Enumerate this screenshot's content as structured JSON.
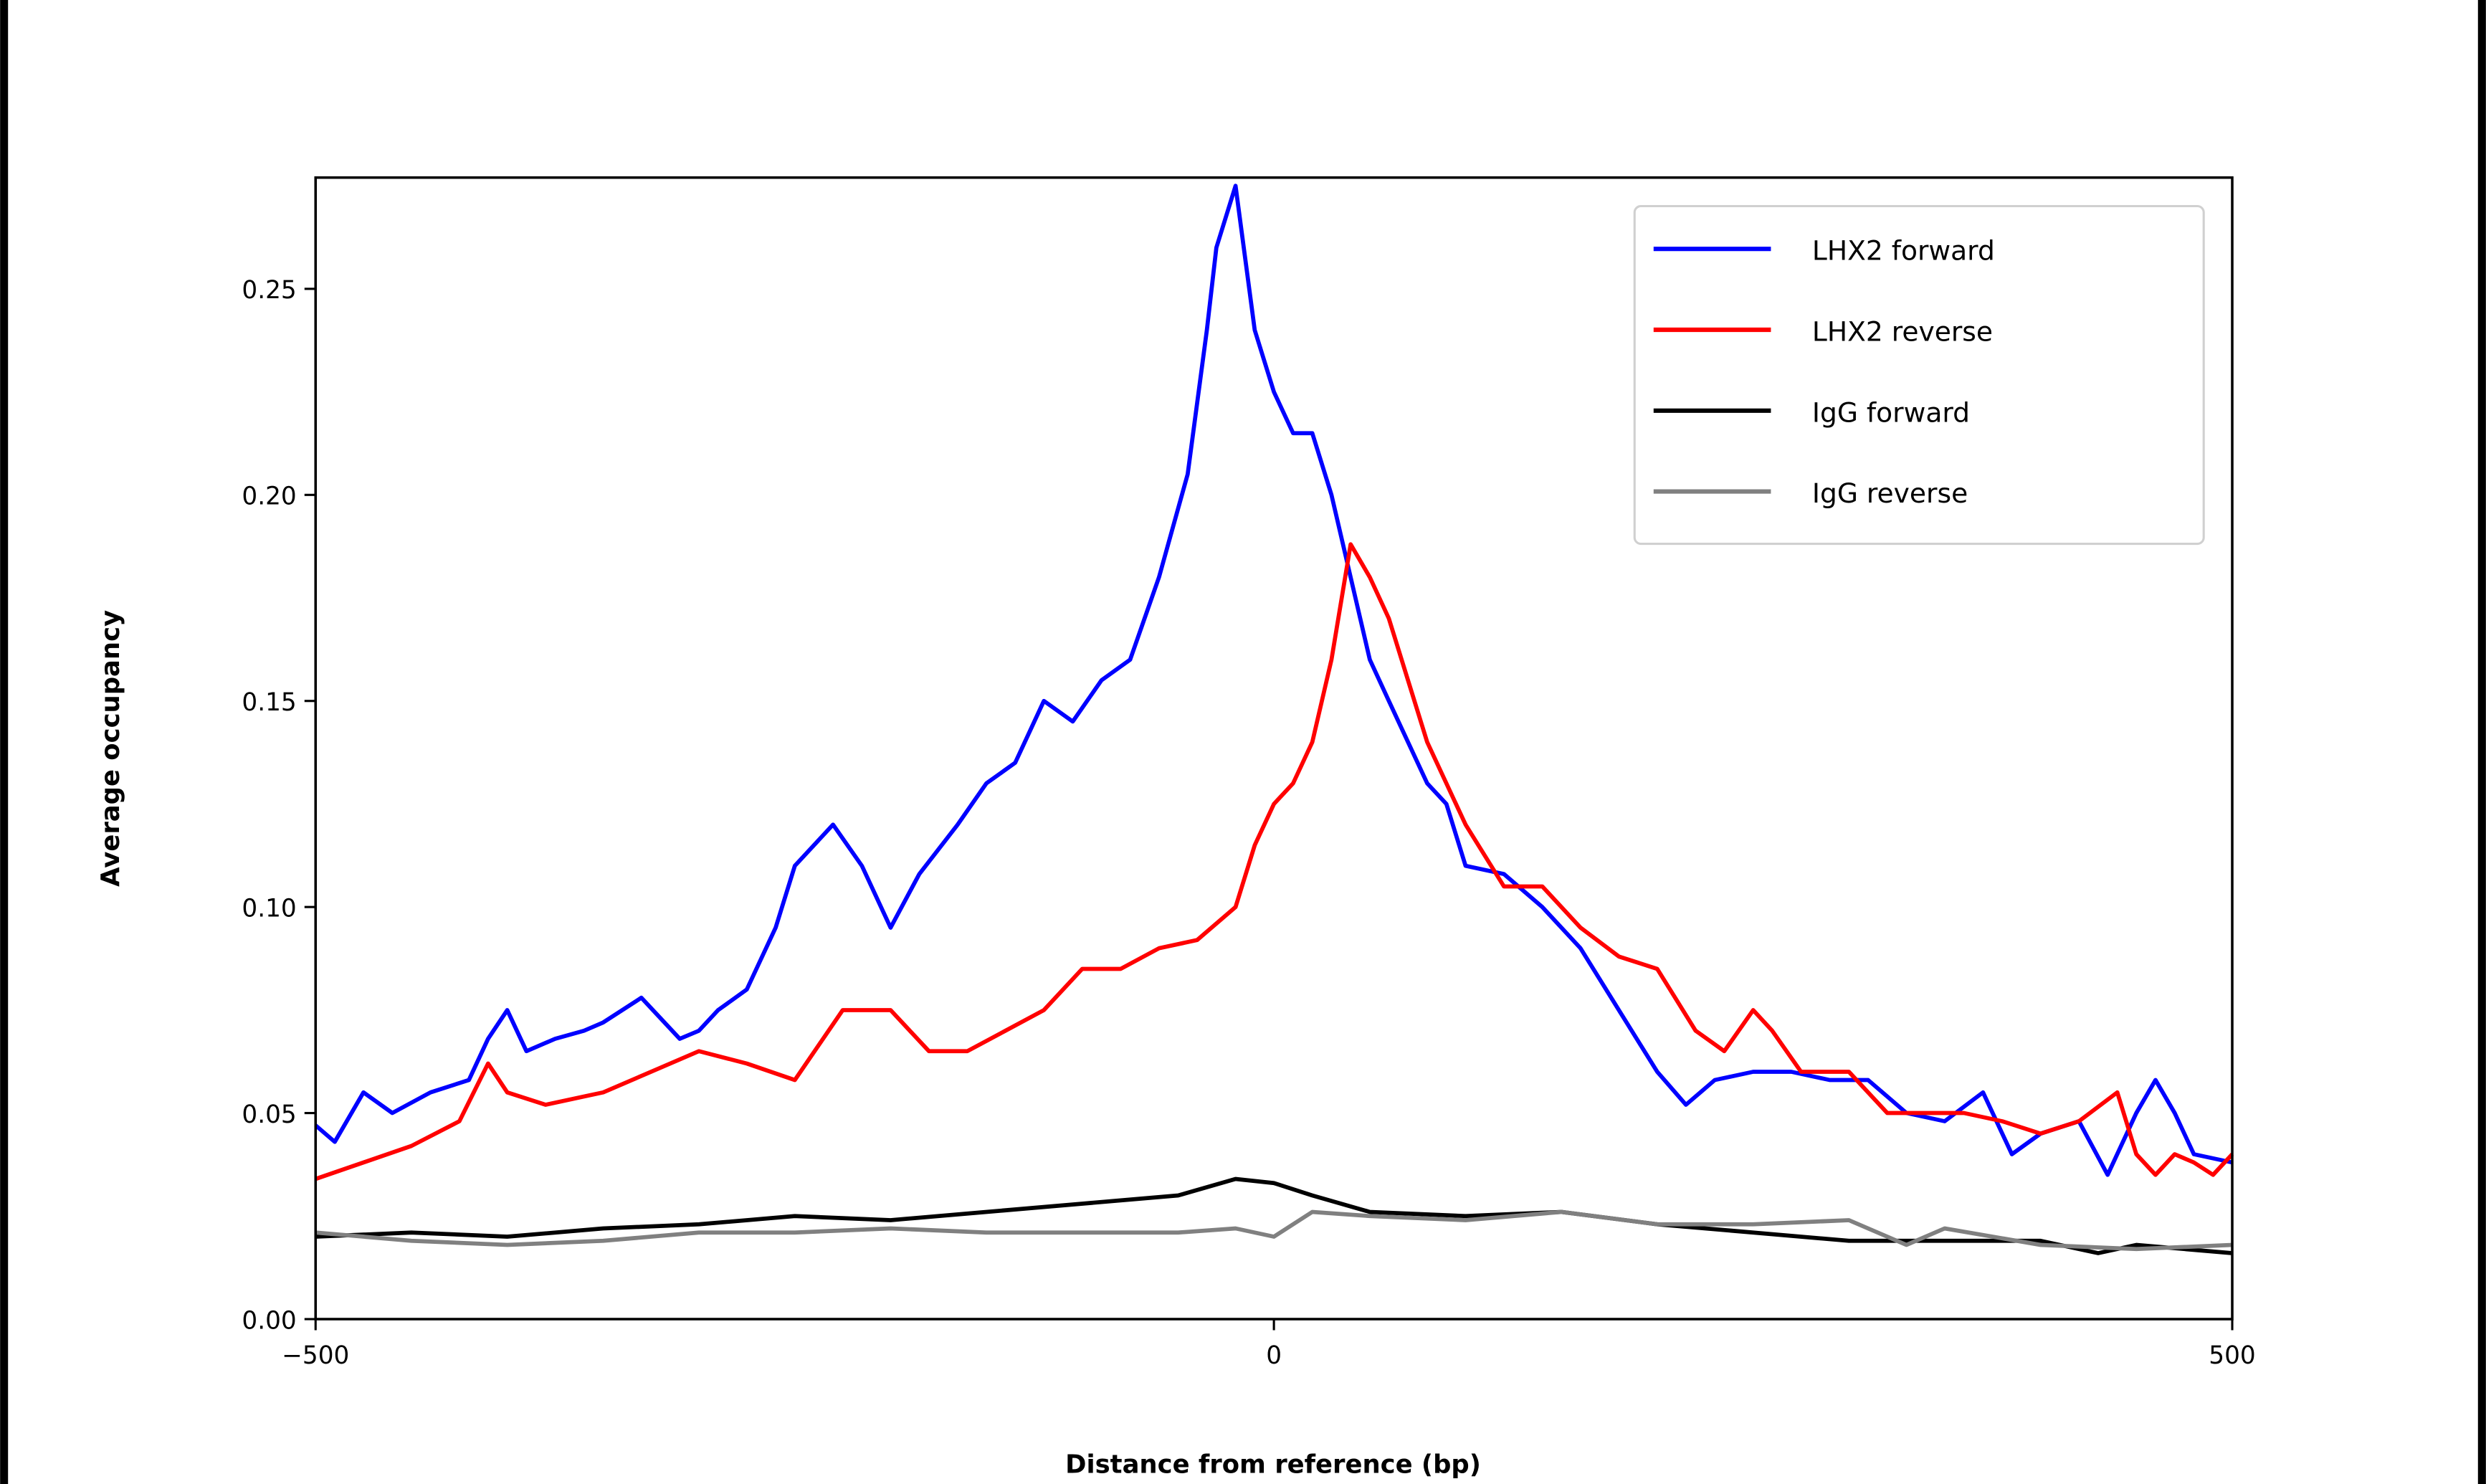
{
  "chart_data": {
    "type": "line",
    "title": "",
    "xlabel": "Distance from reference (bp)",
    "ylabel": "Average occupancy",
    "xlim": [
      -500,
      500
    ],
    "ylim": [
      0,
      0.277
    ],
    "xticks": [
      -500,
      0,
      500
    ],
    "xtick_labels": [
      "−500",
      "0",
      "500"
    ],
    "yticks": [
      0,
      0.05,
      0.1,
      0.15,
      0.2,
      0.25
    ],
    "ytick_labels": [
      "0.00",
      "0.05",
      "0.10",
      "0.15",
      "0.20",
      "0.25"
    ],
    "grid": false,
    "legend_position": "top-right",
    "series": [
      {
        "name": "LHX2 forward",
        "color": "#0000ff",
        "x": [
          -500,
          -490,
          -475,
          -460,
          -440,
          -420,
          -410,
          -400,
          -390,
          -375,
          -360,
          -350,
          -330,
          -310,
          -300,
          -290,
          -275,
          -260,
          -250,
          -230,
          -215,
          -200,
          -185,
          -165,
          -150,
          -135,
          -120,
          -105,
          -90,
          -75,
          -60,
          -45,
          -35,
          -30,
          -20,
          -10,
          0,
          10,
          20,
          30,
          40,
          50,
          60,
          70,
          80,
          90,
          100,
          120,
          140,
          160,
          180,
          200,
          215,
          230,
          250,
          270,
          290,
          310,
          330,
          350,
          370,
          385,
          400,
          420,
          435,
          450,
          460,
          470,
          480,
          500
        ],
        "y": [
          0.047,
          0.043,
          0.055,
          0.05,
          0.055,
          0.058,
          0.068,
          0.075,
          0.065,
          0.068,
          0.07,
          0.072,
          0.078,
          0.068,
          0.07,
          0.075,
          0.08,
          0.095,
          0.11,
          0.12,
          0.11,
          0.095,
          0.108,
          0.12,
          0.13,
          0.135,
          0.15,
          0.145,
          0.155,
          0.16,
          0.18,
          0.205,
          0.24,
          0.26,
          0.275,
          0.24,
          0.225,
          0.215,
          0.215,
          0.2,
          0.18,
          0.16,
          0.15,
          0.14,
          0.13,
          0.125,
          0.11,
          0.108,
          0.1,
          0.09,
          0.075,
          0.06,
          0.052,
          0.058,
          0.06,
          0.06,
          0.058,
          0.058,
          0.05,
          0.048,
          0.055,
          0.04,
          0.045,
          0.048,
          0.035,
          0.05,
          0.058,
          0.05,
          0.04,
          0.038
        ]
      },
      {
        "name": "LHX2 reverse",
        "color": "#ff0000",
        "x": [
          -500,
          -475,
          -450,
          -425,
          -410,
          -400,
          -380,
          -350,
          -325,
          -300,
          -275,
          -250,
          -225,
          -200,
          -180,
          -160,
          -140,
          -120,
          -100,
          -80,
          -60,
          -40,
          -20,
          -10,
          0,
          10,
          20,
          30,
          40,
          50,
          60,
          70,
          80,
          100,
          120,
          140,
          160,
          180,
          200,
          220,
          235,
          250,
          260,
          275,
          300,
          320,
          340,
          360,
          380,
          400,
          420,
          440,
          450,
          460,
          470,
          480,
          490,
          500
        ],
        "y": [
          0.034,
          0.038,
          0.042,
          0.048,
          0.062,
          0.055,
          0.052,
          0.055,
          0.06,
          0.065,
          0.062,
          0.058,
          0.075,
          0.075,
          0.065,
          0.065,
          0.07,
          0.075,
          0.085,
          0.085,
          0.09,
          0.092,
          0.1,
          0.115,
          0.125,
          0.13,
          0.14,
          0.16,
          0.188,
          0.18,
          0.17,
          0.155,
          0.14,
          0.12,
          0.105,
          0.105,
          0.095,
          0.088,
          0.085,
          0.07,
          0.065,
          0.075,
          0.07,
          0.06,
          0.06,
          0.05,
          0.05,
          0.05,
          0.048,
          0.045,
          0.048,
          0.055,
          0.04,
          0.035,
          0.04,
          0.038,
          0.035,
          0.04
        ]
      },
      {
        "name": "IgG forward",
        "color": "#000000",
        "x": [
          -500,
          -450,
          -400,
          -350,
          -300,
          -250,
          -200,
          -150,
          -100,
          -50,
          -20,
          0,
          20,
          50,
          100,
          150,
          200,
          250,
          300,
          350,
          400,
          430,
          450,
          500
        ],
        "y": [
          0.02,
          0.021,
          0.02,
          0.022,
          0.023,
          0.025,
          0.024,
          0.026,
          0.028,
          0.03,
          0.034,
          0.033,
          0.03,
          0.026,
          0.025,
          0.026,
          0.023,
          0.021,
          0.019,
          0.019,
          0.019,
          0.016,
          0.018,
          0.016
        ]
      },
      {
        "name": "IgG reverse",
        "color": "#808080",
        "x": [
          -500,
          -450,
          -400,
          -350,
          -300,
          -250,
          -200,
          -150,
          -100,
          -50,
          -20,
          0,
          20,
          50,
          100,
          150,
          200,
          250,
          300,
          330,
          350,
          400,
          450,
          500
        ],
        "y": [
          0.021,
          0.019,
          0.018,
          0.019,
          0.021,
          0.021,
          0.022,
          0.021,
          0.021,
          0.021,
          0.022,
          0.02,
          0.026,
          0.025,
          0.024,
          0.026,
          0.023,
          0.023,
          0.024,
          0.018,
          0.022,
          0.018,
          0.017,
          0.018
        ]
      }
    ]
  }
}
